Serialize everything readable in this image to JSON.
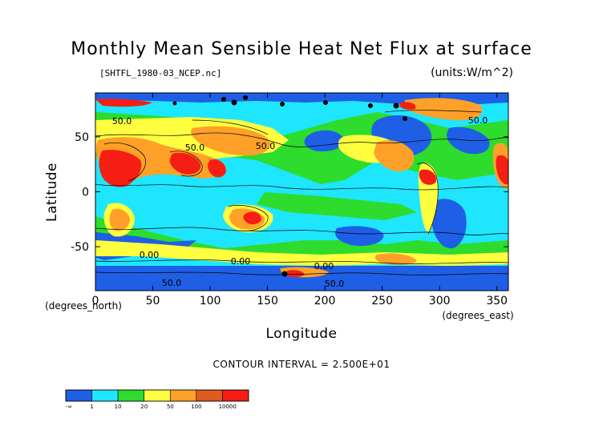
{
  "chart_data": {
    "type": "heatmap",
    "title": "Monthly Mean Sensible Heat Net Flux at surface",
    "subtitle": "[SHTFL_1980-03_NCEP.nc]",
    "units": "(units:W/m^2)",
    "xlabel": "Longitude",
    "xlabel_sub": "(degrees_east)",
    "ylabel": "Latitude",
    "ylabel_sub": "(degrees_north)",
    "xlim": [
      0,
      360
    ],
    "ylim": [
      -90,
      90
    ],
    "x_ticks": [
      0,
      50,
      100,
      150,
      200,
      250,
      300,
      350
    ],
    "y_ticks": [
      50,
      0,
      -50
    ],
    "contour_interval_text": "CONTOUR INTERVAL = 2.500E+01",
    "contour_labels": [
      "50.0",
      "50.0",
      "50.0",
      "0.00",
      "0.00",
      "0.00",
      "50.0",
      "50.0"
    ],
    "colorbar": {
      "colors": [
        "#1e5fe6",
        "#1ee6ff",
        "#2ddc2d",
        "#ffff40",
        "#ffa028",
        "#e05a1e",
        "#f51e14"
      ],
      "labels": [
        "-∞",
        "1",
        "10",
        "20",
        "50",
        "100",
        "10000"
      ]
    }
  }
}
